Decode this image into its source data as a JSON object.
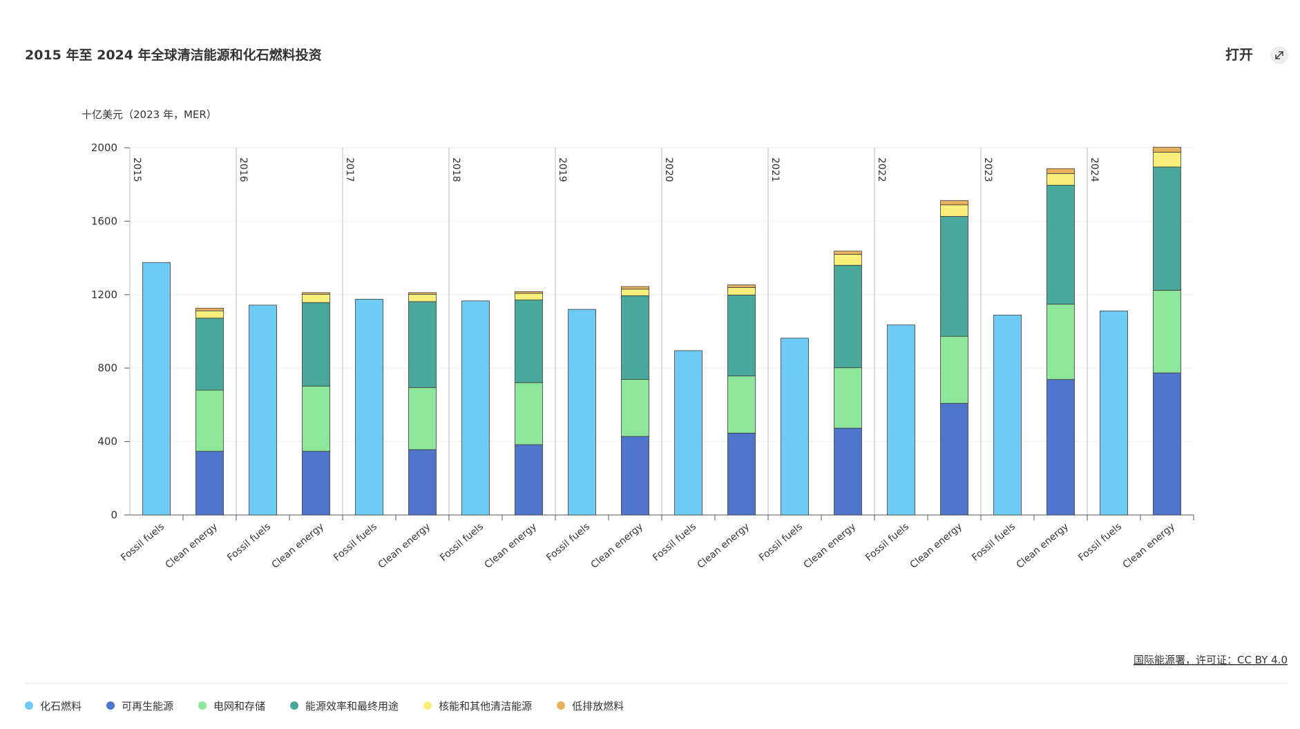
{
  "chart_data": {
    "type": "stacked_bar",
    "title": "2015 年至 2024 年全球清洁能源和化石燃料投资",
    "open_label": "打开",
    "y_label": "十亿美元（2023 年，MER）",
    "source": "国际能源署，许可证：CC BY 4.0",
    "groups": [
      "2015",
      "2016",
      "2017",
      "2018",
      "2019",
      "2020",
      "2021",
      "2022",
      "2023",
      "2024"
    ],
    "categories": [
      "Fossil fuels",
      "Clean energy",
      "Fossil fuels",
      "Clean energy",
      "Fossil fuels",
      "Clean energy",
      "Fossil fuels",
      "Clean energy",
      "Fossil fuels",
      "Clean energy",
      "Fossil fuels",
      "Clean energy",
      "Fossil fuels",
      "Clean energy",
      "Fossil fuels",
      "Clean energy",
      "Fossil fuels",
      "Clean energy",
      "Fossil fuels",
      "Clean energy"
    ],
    "series": [
      {
        "name": "化石燃料",
        "color": "#6ecbf5",
        "values": [
          1375,
          null,
          1143,
          null,
          1175,
          null,
          1166,
          null,
          1120,
          null,
          895,
          null,
          963,
          null,
          1035,
          null,
          1089,
          null,
          1111,
          null
        ]
      },
      {
        "name": "可再生能源",
        "color": "#4f76cc",
        "values": [
          null,
          347,
          null,
          347,
          null,
          356,
          null,
          383,
          null,
          428,
          null,
          446,
          null,
          473,
          null,
          608,
          null,
          738,
          null,
          774
        ]
      },
      {
        "name": "电网和存储",
        "color": "#8ee69a",
        "values": [
          null,
          333,
          null,
          355,
          null,
          338,
          null,
          338,
          null,
          311,
          null,
          311,
          null,
          329,
          null,
          365,
          null,
          410,
          null,
          450
        ]
      },
      {
        "name": "能源效率和最终用途",
        "color": "#4aa79c",
        "values": [
          null,
          392,
          null,
          455,
          null,
          468,
          null,
          450,
          null,
          455,
          null,
          441,
          null,
          558,
          null,
          653,
          null,
          648,
          null,
          671
        ]
      },
      {
        "name": "核能和其他清洁能源",
        "color": "#f7ef7a",
        "values": [
          null,
          40,
          null,
          45,
          null,
          40,
          null,
          36,
          null,
          36,
          null,
          41,
          null,
          59,
          null,
          63,
          null,
          63,
          null,
          81
        ]
      },
      {
        "name": "低排放燃料",
        "color": "#e8b15c",
        "values": [
          null,
          14,
          null,
          9,
          null,
          9,
          null,
          9,
          null,
          14,
          null,
          14,
          null,
          18,
          null,
          23,
          null,
          27,
          null,
          27
        ]
      }
    ],
    "ylim": [
      0,
      2000
    ],
    "yticks": [
      0,
      400,
      800,
      1200,
      1600,
      2000
    ],
    "grid": true
  }
}
